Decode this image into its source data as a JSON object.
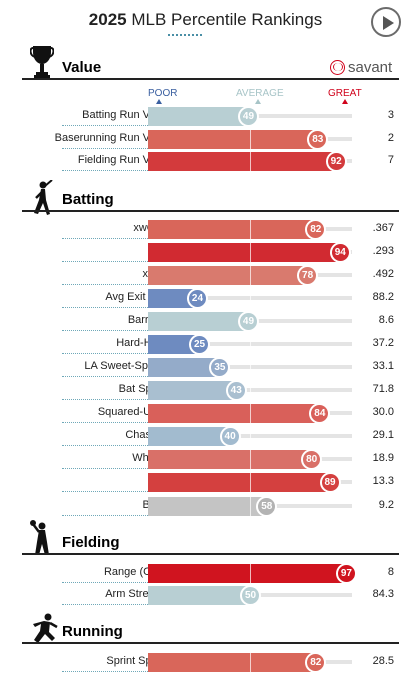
{
  "header": {
    "year": "2025",
    "title": "MLB Percentile Rankings"
  },
  "savant": {
    "label": "savant"
  },
  "scale": {
    "poor": "POOR",
    "average": "AVERAGE",
    "great": "GREAT"
  },
  "colors": {
    "poor": "#3a5fa0",
    "average": "#a7c4c7",
    "great": "#d0021b"
  },
  "chart_data": {
    "type": "bar",
    "xlim": [
      0,
      100
    ],
    "sections": [
      {
        "title": "Value",
        "icon": "trophy-icon",
        "metrics": [
          {
            "name": "Batting Run Value",
            "percentile": 49,
            "value": "3",
            "color": "#b8cfd3"
          },
          {
            "name": "Baserunning Run Value",
            "percentile": 83,
            "value": "2",
            "color": "#d9665a"
          },
          {
            "name": "Fielding Run Value",
            "percentile": 92,
            "value": "7",
            "color": "#d33a3c"
          }
        ]
      },
      {
        "title": "Batting",
        "icon": "batter-icon",
        "metrics": [
          {
            "name": "xwOBA",
            "percentile": 82,
            "value": ".367",
            "color": "#d9665a"
          },
          {
            "name": "xBA",
            "percentile": 94,
            "value": ".293",
            "color": "#d12a31"
          },
          {
            "name": "xSLG",
            "percentile": 78,
            "value": ".492",
            "color": "#d97a6e"
          },
          {
            "name": "Avg Exit Velo",
            "percentile": 24,
            "value": "88.2",
            "color": "#6e8bc0"
          },
          {
            "name": "Barrel %",
            "percentile": 49,
            "value": "8.6",
            "color": "#b8cfd3"
          },
          {
            "name": "Hard-Hit %",
            "percentile": 25,
            "value": "37.2",
            "color": "#6e8bc0"
          },
          {
            "name": "LA Sweet-Spot %",
            "percentile": 35,
            "value": "33.1",
            "color": "#94abc9"
          },
          {
            "name": "Bat Speed",
            "percentile": 43,
            "value": "71.8",
            "color": "#a9bfd0"
          },
          {
            "name": "Squared-Up %",
            "percentile": 84,
            "value": "30.0",
            "color": "#d9605a"
          },
          {
            "name": "Chase %",
            "percentile": 40,
            "value": "29.1",
            "color": "#a2bbcf"
          },
          {
            "name": "Whiff %",
            "percentile": 80,
            "value": "18.9",
            "color": "#d97068"
          },
          {
            "name": "K %",
            "percentile": 89,
            "value": "13.3",
            "color": "#d4403f"
          },
          {
            "name": "BB %",
            "percentile": 58,
            "value": "9.2",
            "color": "#c4c4c4"
          }
        ]
      },
      {
        "title": "Fielding",
        "icon": "fielder-icon",
        "metrics": [
          {
            "name": "Range (OAA)",
            "percentile": 97,
            "value": "8",
            "color": "#d0141f"
          },
          {
            "name": "Arm Strength",
            "percentile": 50,
            "value": "84.3",
            "color": "#b8cfd3"
          }
        ]
      },
      {
        "title": "Running",
        "icon": "runner-icon",
        "metrics": [
          {
            "name": "Sprint Speed",
            "percentile": 82,
            "value": "28.5",
            "color": "#d9665a"
          }
        ]
      }
    ]
  }
}
